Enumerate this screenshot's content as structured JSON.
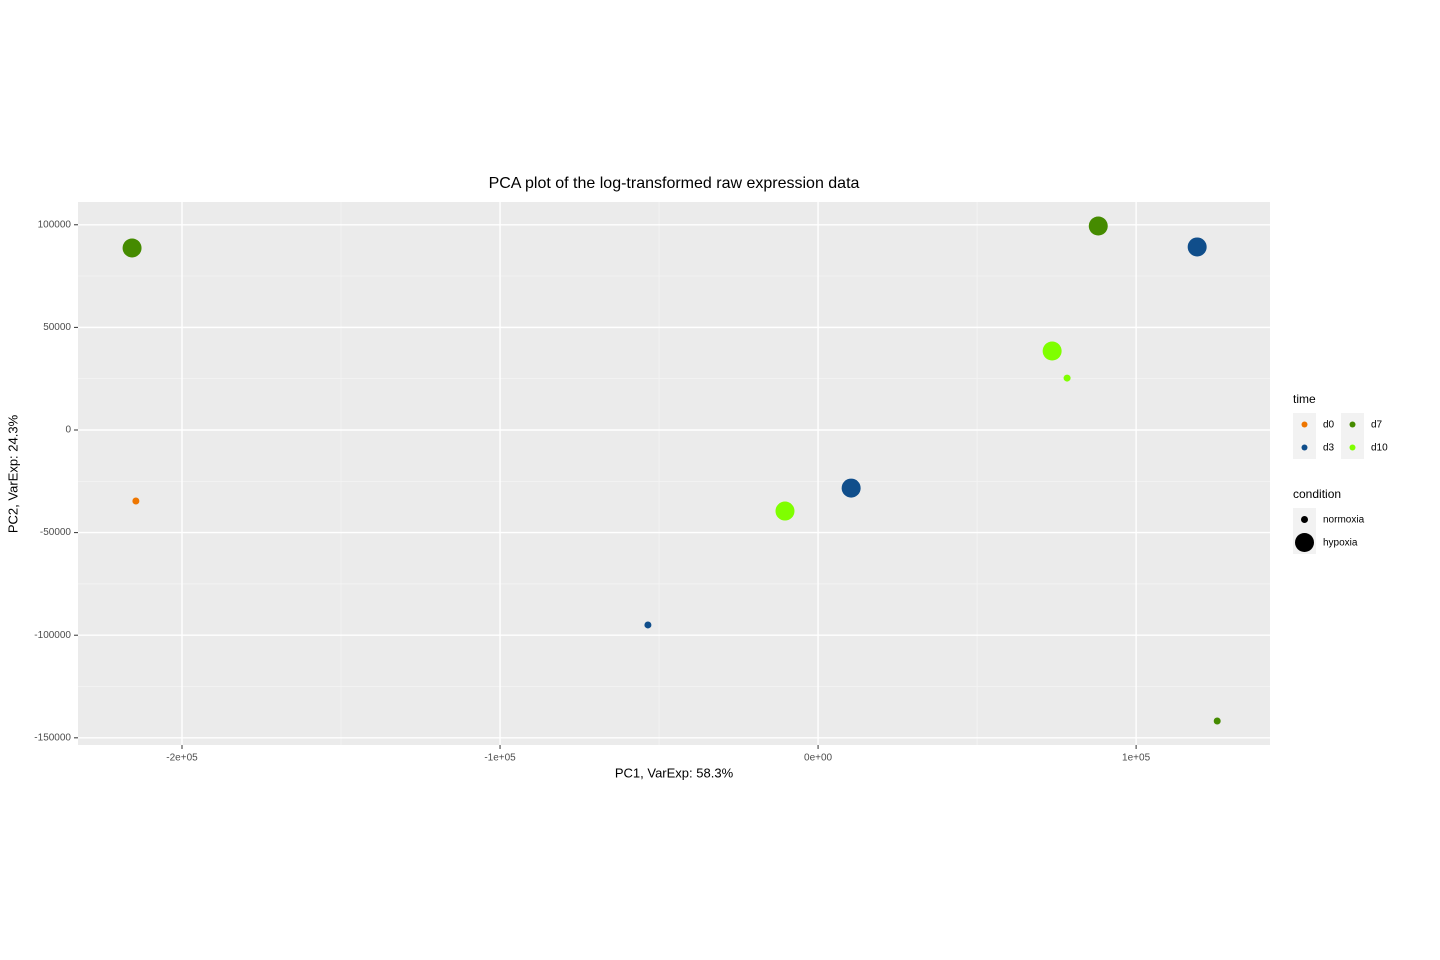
{
  "chart_data": {
    "type": "scatter",
    "title": "PCA plot of the log-transformed raw expression data",
    "x_label": "PC1, VarExp: 58.3%",
    "y_label": "PC2, VarExp: 24.3%",
    "xlim": [
      -232700,
      142100
    ],
    "ylim": [
      -153500,
      111100
    ],
    "xticks": [
      {
        "value": -200000,
        "label": "-2e+05"
      },
      {
        "value": -100000,
        "label": "-1e+05"
      },
      {
        "value": 0,
        "label": "0e+00"
      },
      {
        "value": 100000,
        "label": "1e+05"
      }
    ],
    "yticks": [
      -150000,
      -100000,
      -50000,
      0,
      50000,
      100000
    ],
    "grid": true,
    "color_legend_title": "time",
    "size_legend_title": "condition",
    "conditions": [
      "normoxia",
      "hypoxia"
    ],
    "series": [
      {
        "name": "d0",
        "color": "#ee7600",
        "x": [
          -214500
        ],
        "values": [
          -34600
        ],
        "condition": [
          "normoxia"
        ]
      },
      {
        "name": "d3",
        "color": "#104e8b",
        "x": [
          -53500,
          10400,
          119200
        ],
        "values": [
          -95000,
          -28300,
          89200
        ],
        "condition": [
          "normoxia",
          "hypoxia",
          "hypoxia"
        ]
      },
      {
        "name": "d7",
        "color": "#458b00",
        "x": [
          -215700,
          88100,
          125500
        ],
        "values": [
          88700,
          99400,
          -141800
        ],
        "condition": [
          "hypoxia",
          "hypoxia",
          "normoxia"
        ]
      },
      {
        "name": "d10",
        "color": "#7fff00",
        "x": [
          -10400,
          73600,
          78300
        ],
        "values": [
          -39500,
          38500,
          25300
        ],
        "condition": [
          "hypoxia",
          "hypoxia",
          "normoxia"
        ]
      }
    ]
  }
}
